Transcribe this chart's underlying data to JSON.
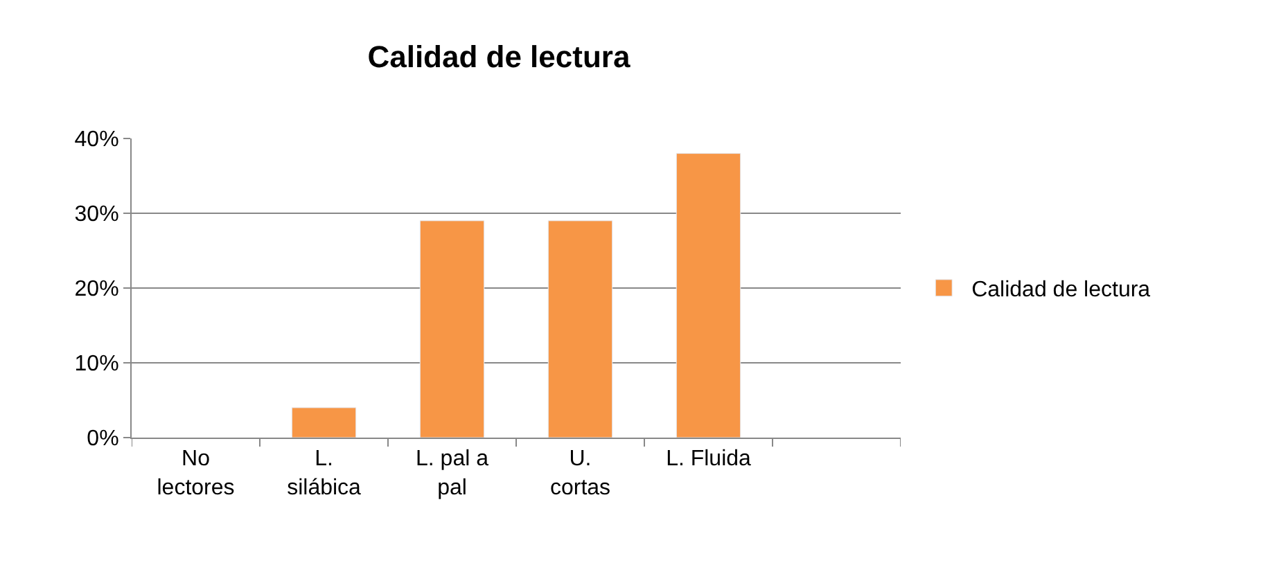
{
  "chart_data": {
    "type": "bar",
    "title": "Calidad de lectura",
    "categories": [
      "No\nlectores",
      "L.\nsilábica",
      "L. pal a\npal",
      "U.\ncortas",
      "L. Fluida",
      null
    ],
    "series": [
      {
        "name": "Calidad de lectura",
        "color": "#f79646",
        "values": [
          null,
          4,
          29,
          29,
          38,
          null
        ]
      }
    ],
    "ylim": [
      0,
      40
    ],
    "yticks": [
      {
        "value": 0,
        "label": "0%"
      },
      {
        "value": 10,
        "label": "10%"
      },
      {
        "value": 20,
        "label": "20%"
      },
      {
        "value": 30,
        "label": "30%"
      },
      {
        "value": 40,
        "label": "40%"
      }
    ],
    "grid": "y",
    "legend": "right"
  }
}
